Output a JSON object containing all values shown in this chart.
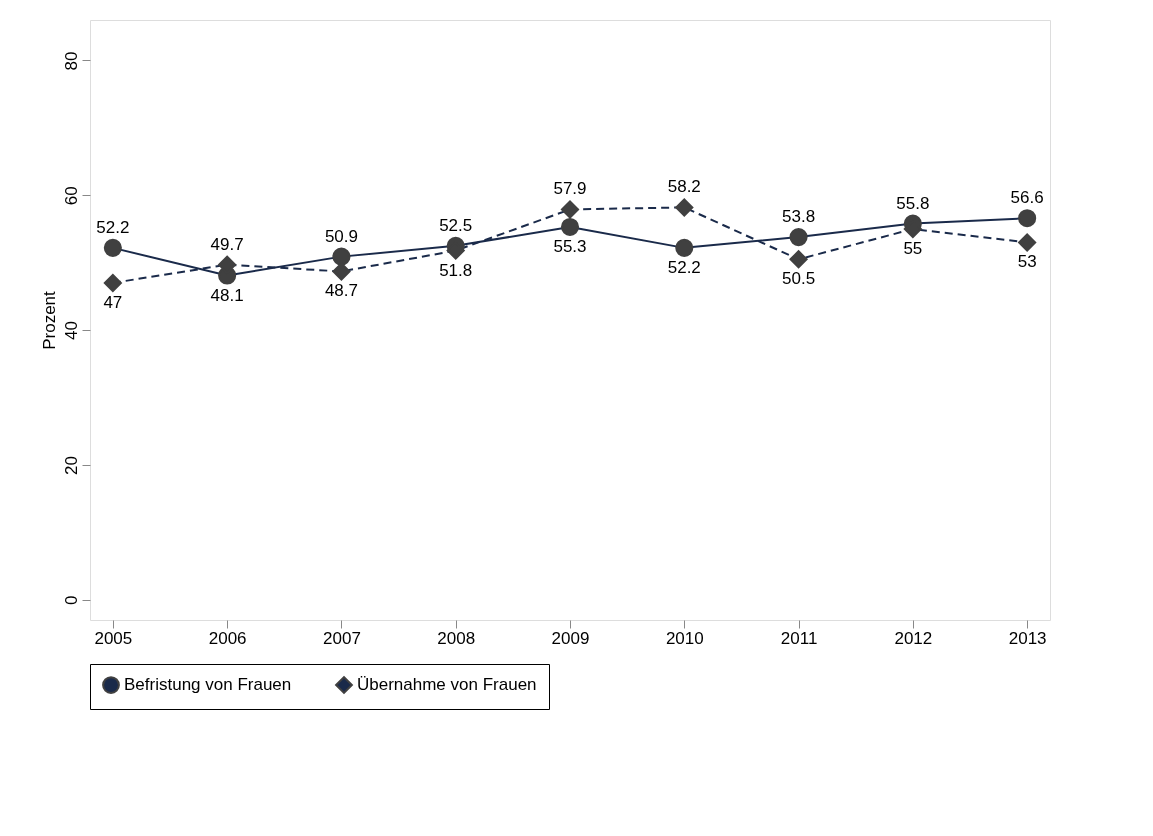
{
  "chart_data": {
    "type": "line",
    "ylabel": "Prozent",
    "x": [
      2005,
      2006,
      2007,
      2008,
      2009,
      2010,
      2011,
      2012,
      2013
    ],
    "xlim": [
      2004.8,
      2013.2
    ],
    "xticks": [
      2005,
      2006,
      2007,
      2008,
      2009,
      2010,
      2011,
      2012,
      2013
    ],
    "ylim": [
      -3,
      86
    ],
    "yticks": [
      0,
      20,
      40,
      60,
      80
    ],
    "grid": false,
    "legend": "bottom",
    "data_labels": true,
    "series": [
      {
        "name": "Befristung von Frauen",
        "color": "#1a2a4a",
        "marker": "circle",
        "line_style": "solid",
        "values": [
          52.2,
          48.1,
          50.9,
          52.5,
          55.3,
          52.2,
          53.8,
          55.8,
          56.6
        ]
      },
      {
        "name": "Übernahme von Frauen",
        "color": "#1a2a4a",
        "marker": "diamond",
        "line_style": "dashed",
        "values": [
          47,
          49.7,
          48.7,
          51.8,
          57.9,
          58.2,
          50.5,
          55,
          53
        ]
      }
    ]
  }
}
